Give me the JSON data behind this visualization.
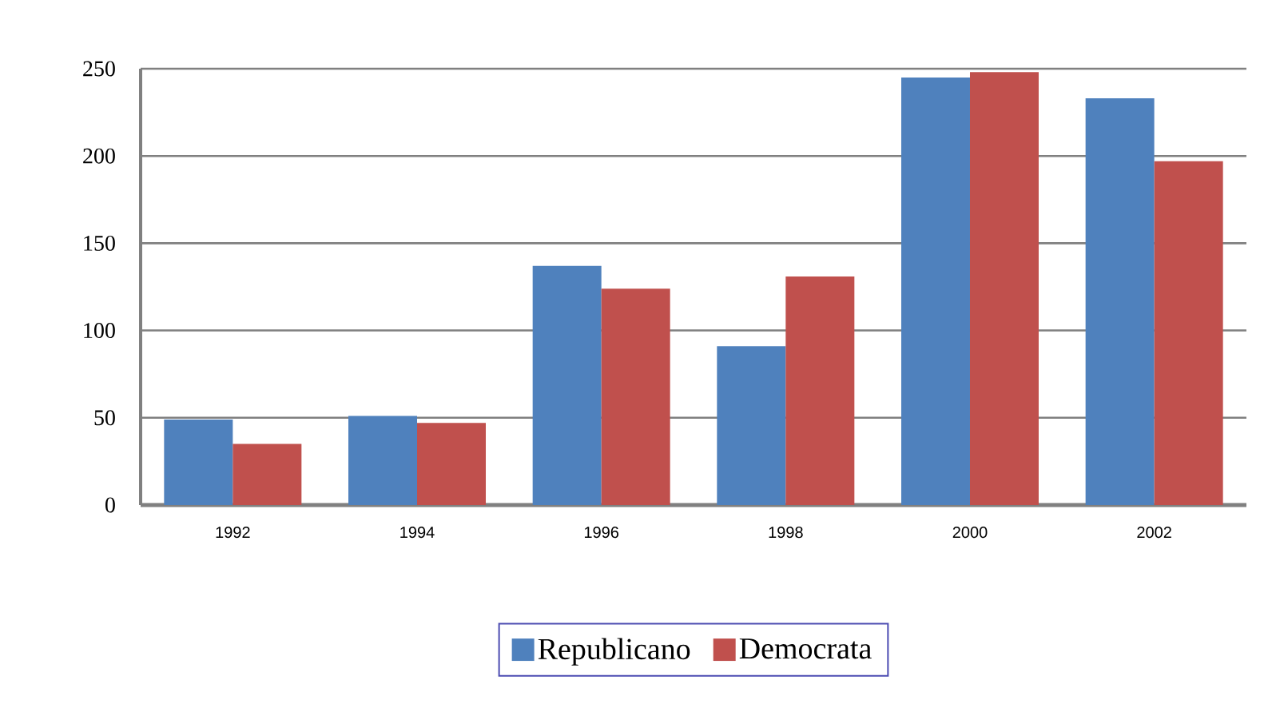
{
  "chart_data": {
    "type": "bar",
    "categories": [
      "1992",
      "1994",
      "1996",
      "1998",
      "2000",
      "2002"
    ],
    "series": [
      {
        "name": "Republicano",
        "color": "#4f81bd",
        "values": [
          49,
          51,
          137,
          91,
          245,
          233
        ]
      },
      {
        "name": "Democrata",
        "color": "#c0504d",
        "values": [
          35,
          47,
          124,
          131,
          248,
          197
        ]
      }
    ],
    "ylim": [
      0,
      250
    ],
    "yticks": [
      0,
      50,
      100,
      150,
      200,
      250
    ],
    "grid": "y",
    "legend": "bottom"
  }
}
